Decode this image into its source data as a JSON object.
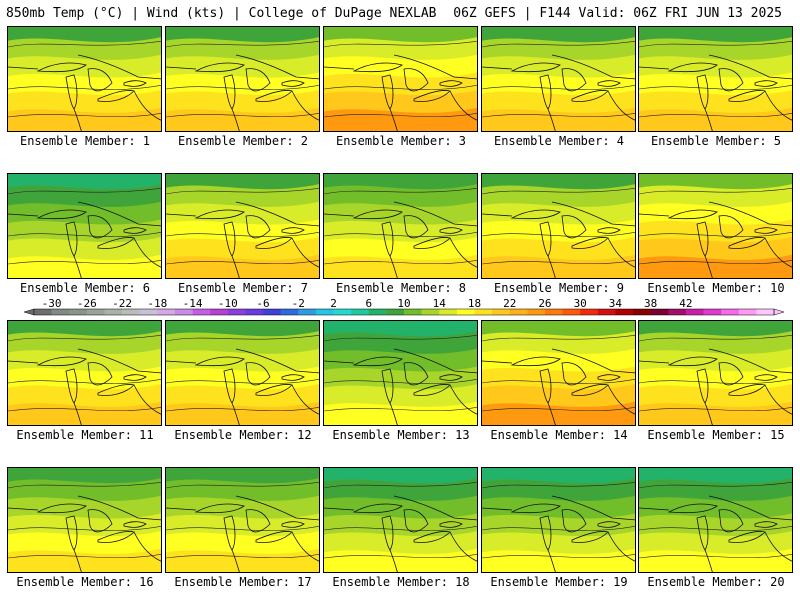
{
  "header": {
    "left": "850mb Temp (°C) | Wind (kts) | College of DuPage NEXLAB",
    "right": "06Z GEFS | F144 Valid: 06Z FRI JUN 13 2025"
  },
  "panels": [
    {
      "label": "Ensemble Member: 1",
      "tone": "warm"
    },
    {
      "label": "Ensemble Member: 2",
      "tone": "warm"
    },
    {
      "label": "Ensemble Member: 3",
      "tone": "hot"
    },
    {
      "label": "Ensemble Member: 4",
      "tone": "warm"
    },
    {
      "label": "Ensemble Member: 5",
      "tone": "warm"
    },
    {
      "label": "Ensemble Member: 6",
      "tone": "cool"
    },
    {
      "label": "Ensemble Member: 7",
      "tone": "warm"
    },
    {
      "label": "Ensemble Member: 8",
      "tone": "mild"
    },
    {
      "label": "Ensemble Member: 9",
      "tone": "warm"
    },
    {
      "label": "Ensemble Member: 10",
      "tone": "hot"
    },
    {
      "label": "Ensemble Member: 11",
      "tone": "warm"
    },
    {
      "label": "Ensemble Member: 12",
      "tone": "warm"
    },
    {
      "label": "Ensemble Member: 13",
      "tone": "cool"
    },
    {
      "label": "Ensemble Member: 14",
      "tone": "hot"
    },
    {
      "label": "Ensemble Member: 15",
      "tone": "warm"
    },
    {
      "label": "Ensemble Member: 16",
      "tone": "mild"
    },
    {
      "label": "Ensemble Member: 17",
      "tone": "mild"
    },
    {
      "label": "Ensemble Member: 18",
      "tone": "cool"
    },
    {
      "label": "Ensemble Member: 19",
      "tone": "cool"
    },
    {
      "label": "Ensemble Member: 20",
      "tone": "cool"
    }
  ],
  "colorbar": {
    "ticks": [
      "-30",
      "-26",
      "-22",
      "-18",
      "-14",
      "-10",
      "-6",
      "-2",
      "2",
      "6",
      "10",
      "14",
      "18",
      "22",
      "26",
      "30",
      "34",
      "38",
      "42"
    ],
    "colors": [
      "#6e6e6e",
      "#7f8a82",
      "#8a958a",
      "#9aa39a",
      "#a9b1a9",
      "#b9bdb9",
      "#c8c0d8",
      "#d6a8e6",
      "#c98be3",
      "#c45ee8",
      "#b63fd8",
      "#8b3fe0",
      "#6b3ae0",
      "#3f3fd9",
      "#2f6be0",
      "#2f9ae6",
      "#26c3e8",
      "#22d9cf",
      "#1fc9a3",
      "#22b26a",
      "#3fa53a",
      "#72bd2a",
      "#a8d52a",
      "#d9ec2a",
      "#ffff22",
      "#ffe21e",
      "#ffc81a",
      "#ffb014",
      "#ff9a10",
      "#ff7a0c",
      "#ff5a0a",
      "#f02a0a",
      "#d21010",
      "#b00000",
      "#8a0000",
      "#7a0030",
      "#a0106a",
      "#c81ea8",
      "#e23ad0",
      "#f46ae8",
      "#ff9af4",
      "#ffc8fc"
    ]
  },
  "tone_palettes": {
    "cool": [
      "#22b26a",
      "#3fa53a",
      "#72bd2a",
      "#a8d52a",
      "#d9ec2a",
      "#ffff22"
    ],
    "mild": [
      "#3fa53a",
      "#72bd2a",
      "#a8d52a",
      "#d9ec2a",
      "#ffff22",
      "#ffe21e"
    ],
    "warm": [
      "#3fa53a",
      "#a8d52a",
      "#d9ec2a",
      "#ffff22",
      "#ffe21e",
      "#ffc81a"
    ],
    "hot": [
      "#72bd2a",
      "#d9ec2a",
      "#ffff22",
      "#ffe21e",
      "#ffc81a",
      "#ff9a10"
    ]
  }
}
